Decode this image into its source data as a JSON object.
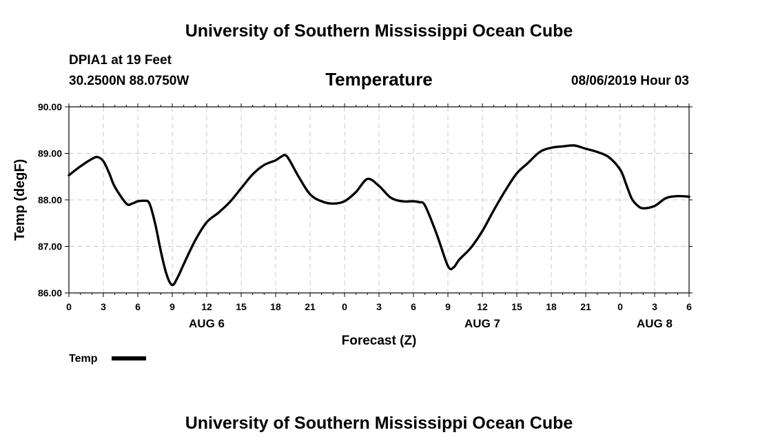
{
  "header": {
    "top_title": "University of Southern Mississippi Ocean Cube",
    "bottom_title": "University of Southern Mississippi Ocean Cube",
    "station": "DPIA1 at 19 Feet",
    "coordinates": "30.2500N 88.0750W",
    "chart_title": "Temperature",
    "datetime": "08/06/2019 Hour 03"
  },
  "legend": {
    "label": "Temp"
  },
  "chart_data": {
    "type": "line",
    "title": "Temperature",
    "xlabel": "Forecast (Z)",
    "ylabel": "Temp (degF)",
    "xlim": [
      0,
      54
    ],
    "ylim": [
      86.0,
      90.0
    ],
    "grid": true,
    "legend_position": "bottom-left",
    "y_ticks": [
      "86.00",
      "87.00",
      "88.00",
      "89.00",
      "90.00"
    ],
    "y_tick_values": [
      86.0,
      87.0,
      88.0,
      89.0,
      90.0
    ],
    "x_tick_values": [
      0,
      3,
      6,
      9,
      12,
      15,
      18,
      21,
      24,
      27,
      30,
      33,
      36,
      39,
      42,
      45,
      48,
      51,
      54
    ],
    "x_tick_labels": [
      "0",
      "3",
      "6",
      "9",
      "12",
      "15",
      "18",
      "21",
      "0",
      "3",
      "6",
      "9",
      "12",
      "15",
      "18",
      "21",
      "0",
      "3",
      "6"
    ],
    "date_labels": [
      {
        "hour": 12,
        "label": "AUG 6"
      },
      {
        "hour": 36,
        "label": "AUG 7"
      },
      {
        "hour": 51,
        "label": "AUG 8"
      }
    ],
    "series": [
      {
        "name": "Temp",
        "color": "#000000",
        "x": [
          0,
          1,
          2,
          2.5,
          3,
          3.5,
          4,
          5,
          5.5,
          6,
          6.5,
          7,
          7.5,
          8,
          8.5,
          9,
          9.5,
          10,
          11,
          12,
          13,
          14,
          15,
          16,
          17,
          18,
          18.5,
          19,
          20,
          21,
          22,
          23,
          24,
          25,
          26,
          27,
          28,
          29,
          30,
          30.5,
          31,
          32,
          33,
          33.5,
          34,
          35,
          36,
          37,
          38,
          39,
          40,
          41,
          42,
          43,
          44,
          45,
          46,
          47,
          48,
          48.5,
          49,
          49.5,
          50,
          51,
          52,
          53,
          54
        ],
        "values": [
          88.53,
          88.72,
          88.88,
          88.92,
          88.83,
          88.58,
          88.28,
          87.92,
          87.92,
          87.97,
          87.98,
          87.93,
          87.5,
          86.9,
          86.4,
          86.17,
          86.35,
          86.62,
          87.13,
          87.52,
          87.72,
          87.95,
          88.25,
          88.55,
          88.75,
          88.85,
          88.93,
          88.93,
          88.5,
          88.12,
          87.97,
          87.92,
          87.97,
          88.17,
          88.45,
          88.3,
          88.05,
          87.97,
          87.97,
          87.95,
          87.88,
          87.28,
          86.58,
          86.55,
          86.72,
          86.97,
          87.33,
          87.78,
          88.2,
          88.57,
          88.8,
          89.03,
          89.12,
          89.15,
          89.17,
          89.1,
          89.03,
          88.92,
          88.65,
          88.35,
          88.03,
          87.88,
          87.82,
          87.87,
          88.04,
          88.08,
          88.07
        ]
      }
    ]
  }
}
